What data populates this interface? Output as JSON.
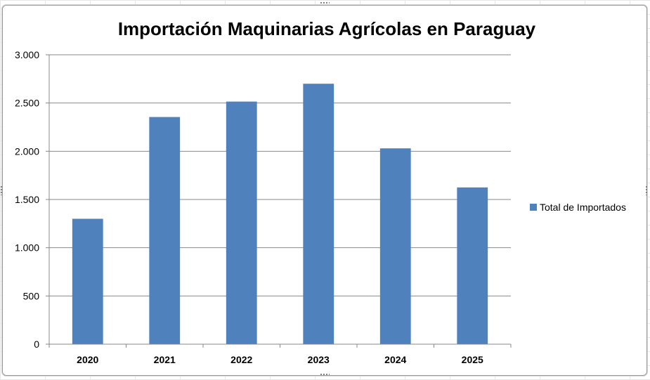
{
  "chart_data": {
    "type": "bar",
    "title": "Importación Maquinarias Agrícolas en Paraguay",
    "categories": [
      "2020",
      "2021",
      "2022",
      "2023",
      "2024",
      "2025"
    ],
    "series": [
      {
        "name": "Total de Importados",
        "values": [
          1300,
          2355,
          2515,
          2700,
          2030,
          1625
        ],
        "color": "#4f81bd"
      }
    ],
    "ylim": [
      0,
      3000
    ],
    "yticks": [
      0,
      500,
      1000,
      1500,
      2000,
      2500,
      3000
    ],
    "ytick_labels": [
      "0",
      "500",
      "1.000",
      "1.500",
      "2.000",
      "2.500",
      "3.000"
    ],
    "grid": true,
    "legend": "right"
  }
}
